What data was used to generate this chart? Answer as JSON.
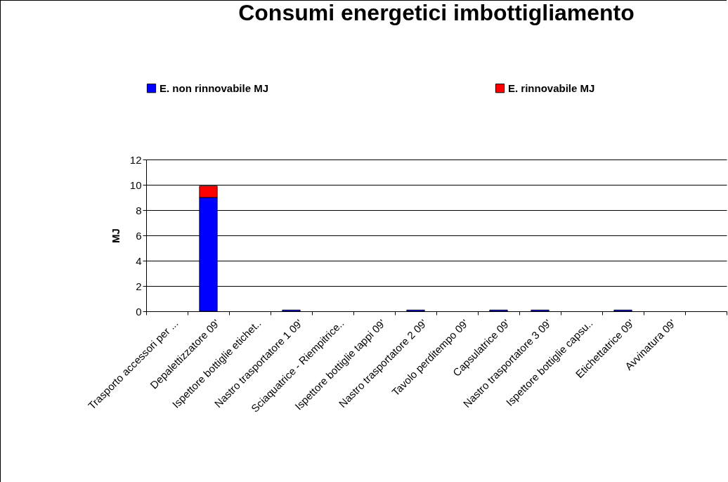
{
  "chart_data": {
    "type": "bar",
    "title": "Consumi energetici imbottigliamento",
    "ylabel": "MJ",
    "stacked": true,
    "legend": "top",
    "grid": "y",
    "categories": [
      "Trasporto accessori per ...",
      "Depalettizzatore 09'",
      "Ispettore bottiglie etichet..",
      "Nastro trasportatore 1 09'",
      "Sciaquatrice - Riempitrice..",
      "Ispettore bottiglie tappi 09'",
      "Nastro trasportatore 2 09'",
      "Tavolo perditempo 09'",
      "Capsulatrice 09'",
      "Nastro trasportatore 3 09'",
      "Ispettore bottiglie capsu..",
      "Etichettatrice 09'",
      "Avvinatura 09'",
      null
    ],
    "series": [
      {
        "name": "E. non rinnovabile MJ",
        "color": "#0000ff",
        "values": [
          0,
          9.0,
          0,
          0.1,
          0,
          0,
          0.1,
          0,
          0.1,
          0.1,
          0,
          0.1,
          0,
          0
        ]
      },
      {
        "name": "E. rinnovabile MJ",
        "color": "#ff0000",
        "values": [
          0,
          0.9,
          0,
          0,
          0,
          0,
          0,
          0,
          0,
          0,
          0,
          0,
          0,
          0
        ]
      }
    ],
    "ylim": [
      0,
      12
    ],
    "yticks": [
      0,
      2,
      4,
      6,
      8,
      10,
      12
    ]
  }
}
